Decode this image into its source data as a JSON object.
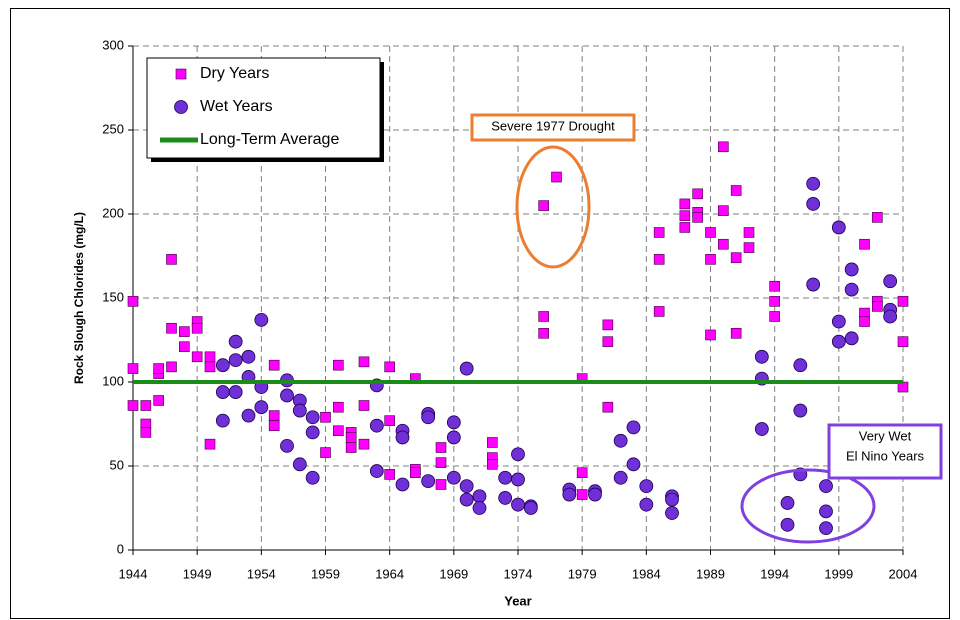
{
  "chart_data": {
    "type": "scatter",
    "x_label": "Year",
    "y_label": "Rock Slough Chlorides (mg/L)",
    "xlim": [
      1944,
      2004
    ],
    "xticks": [
      1944,
      1949,
      1954,
      1959,
      1964,
      1969,
      1974,
      1979,
      1984,
      1989,
      1994,
      1999,
      2004
    ],
    "ylim": [
      0,
      300
    ],
    "yticks": [
      0,
      50,
      100,
      150,
      200,
      250,
      300
    ],
    "grid": true,
    "legend": "upper left",
    "annotations": [
      [
        "Severe 1977 Drought"
      ],
      [
        "Very Wet",
        "El Nino Years"
      ]
    ],
    "series": [
      {
        "name": "Dry Years",
        "marker": "square",
        "color": "#ff00ff",
        "x": [
          1944,
          1944,
          1944,
          1945,
          1945,
          1945,
          1946,
          1946,
          1946,
          1947,
          1947,
          1947,
          1948,
          1948,
          1949,
          1949,
          1949,
          1950,
          1950,
          1950,
          1955,
          1955,
          1955,
          1959,
          1959,
          1960,
          1960,
          1960,
          1961,
          1961,
          1961,
          1962,
          1962,
          1962,
          1964,
          1964,
          1964,
          1966,
          1966,
          1966,
          1968,
          1968,
          1968,
          1972,
          1972,
          1972,
          1976,
          1976,
          1976,
          1977,
          1979,
          1979,
          1979,
          1981,
          1981,
          1981,
          1985,
          1985,
          1985,
          1987,
          1987,
          1987,
          1988,
          1988,
          1988,
          1989,
          1989,
          1989,
          1990,
          1990,
          1990,
          1991,
          1991,
          1991,
          1992,
          1992,
          1994,
          1994,
          1994,
          2001,
          2001,
          2001,
          2002,
          2002,
          2002,
          2004,
          2004,
          2004
        ],
        "values": [
          148,
          108,
          86,
          86,
          75,
          70,
          105,
          108,
          89,
          173,
          132,
          109,
          130,
          121,
          136,
          132,
          115,
          115,
          109,
          63,
          110,
          80,
          74,
          79,
          58,
          110,
          85,
          71,
          70,
          67,
          61,
          112,
          86,
          63,
          109,
          77,
          45,
          102,
          48,
          46,
          61,
          52,
          39,
          64,
          55,
          51,
          205,
          139,
          129,
          222,
          102,
          46,
          33,
          134,
          124,
          85,
          189,
          173,
          142,
          206,
          199,
          192,
          212,
          201,
          198,
          189,
          173,
          128,
          240,
          202,
          182,
          214,
          174,
          129,
          189,
          180,
          157,
          148,
          139,
          182,
          141,
          136,
          198,
          148,
          145,
          148,
          124,
          97
        ]
      },
      {
        "name": "Wet Years",
        "marker": "circle",
        "color": "#7030d8",
        "x": [
          1951,
          1951,
          1951,
          1952,
          1952,
          1952,
          1953,
          1953,
          1953,
          1954,
          1954,
          1954,
          1956,
          1956,
          1956,
          1957,
          1957,
          1957,
          1958,
          1958,
          1958,
          1963,
          1963,
          1963,
          1965,
          1965,
          1965,
          1967,
          1967,
          1967,
          1969,
          1969,
          1969,
          1970,
          1970,
          1970,
          1971,
          1971,
          1973,
          1973,
          1974,
          1974,
          1974,
          1975,
          1975,
          1978,
          1978,
          1980,
          1980,
          1982,
          1982,
          1983,
          1983,
          1984,
          1984,
          1986,
          1986,
          1986,
          1993,
          1993,
          1993,
          1995,
          1995,
          1996,
          1996,
          1996,
          1997,
          1997,
          1997,
          1998,
          1998,
          1998,
          1999,
          1999,
          1999,
          2000,
          2000,
          2000,
          2003,
          2003,
          2003
        ],
        "values": [
          110,
          94,
          77,
          124,
          113,
          94,
          115,
          103,
          80,
          137,
          97,
          85,
          101,
          92,
          62,
          89,
          83,
          51,
          79,
          70,
          43,
          98,
          74,
          47,
          71,
          67,
          39,
          81,
          79,
          41,
          76,
          67,
          43,
          108,
          38,
          30,
          32,
          25,
          43,
          31,
          57,
          42,
          27,
          26,
          25,
          36,
          33,
          35,
          33,
          65,
          43,
          73,
          51,
          38,
          27,
          32,
          30,
          22,
          115,
          102,
          72,
          28,
          15,
          110,
          83,
          45,
          218,
          206,
          158,
          38,
          23,
          13,
          192,
          136,
          124,
          167,
          155,
          126,
          160,
          143,
          139
        ]
      },
      {
        "name": "Long-Term Average",
        "marker": "line",
        "color": "#1a8c1a",
        "x": [
          1944,
          2004
        ],
        "values": [
          100,
          100
        ]
      }
    ]
  }
}
